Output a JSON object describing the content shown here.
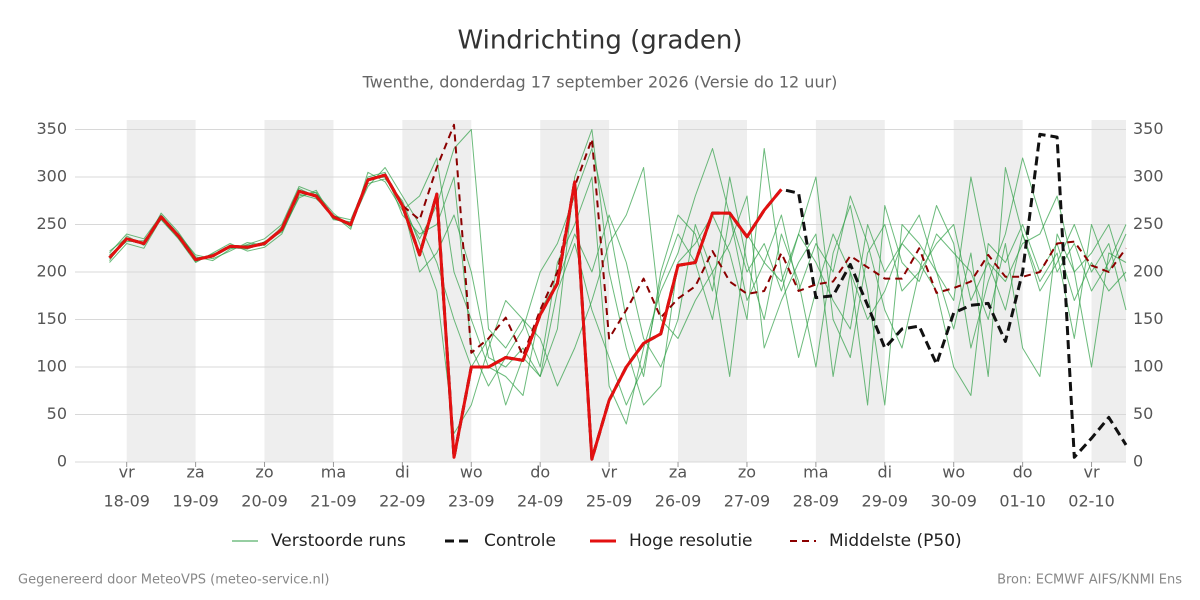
{
  "chart_data": {
    "type": "line",
    "title": "Windrichting (graden)",
    "subtitle": "Twenthe, donderdag 17 september 2026 (Versie do 12 uur)",
    "footer_left": "Gegenereerd door MeteoVPS (meteo-service.nl)",
    "footer_right": "Bron: ECMWF AIFS/KNMI Ens",
    "xlim": [
      -0.75,
      14.5
    ],
    "xticks": [
      {
        "value": 0,
        "label": [
          "vr",
          "18-09"
        ]
      },
      {
        "value": 1,
        "label": [
          "za",
          "19-09"
        ]
      },
      {
        "value": 2,
        "label": [
          "zo",
          "20-09"
        ]
      },
      {
        "value": 3,
        "label": [
          "ma",
          "21-09"
        ]
      },
      {
        "value": 4,
        "label": [
          "di",
          "22-09"
        ]
      },
      {
        "value": 5,
        "label": [
          "wo",
          "23-09"
        ]
      },
      {
        "value": 6,
        "label": [
          "do",
          "24-09"
        ]
      },
      {
        "value": 7,
        "label": [
          "vr",
          "25-09"
        ]
      },
      {
        "value": 8,
        "label": [
          "za",
          "26-09"
        ]
      },
      {
        "value": 9,
        "label": [
          "zo",
          "27-09"
        ]
      },
      {
        "value": 10,
        "label": [
          "ma",
          "28-09"
        ]
      },
      {
        "value": 11,
        "label": [
          "di",
          "29-09"
        ]
      },
      {
        "value": 12,
        "label": [
          "wo",
          "30-09"
        ]
      },
      {
        "value": 13,
        "label": [
          "do",
          "01-10"
        ]
      },
      {
        "value": 14,
        "label": [
          "vr",
          "02-10"
        ]
      }
    ],
    "ylim": [
      0,
      360
    ],
    "yticks": [
      0,
      50,
      100,
      150,
      200,
      250,
      300,
      350
    ],
    "y2lim": [
      0,
      360
    ],
    "y2ticks": [
      0,
      50,
      100,
      150,
      200,
      250,
      300,
      350
    ],
    "grid": true,
    "x": [
      -0.25,
      0,
      0.25,
      0.5,
      0.75,
      1,
      1.25,
      1.5,
      1.75,
      2,
      2.25,
      2.5,
      2.75,
      3,
      3.25,
      3.5,
      3.75,
      4,
      4.25,
      4.5,
      4.75,
      5,
      5.25,
      5.5,
      5.75,
      6,
      6.25,
      6.5,
      6.75,
      7,
      7.25,
      7.5,
      7.75,
      8,
      8.25,
      8.5,
      8.75,
      9,
      9.25,
      9.5,
      9.75,
      10,
      10.25,
      10.5,
      10.75,
      11,
      11.25,
      11.5,
      11.75,
      12,
      12.25,
      12.5,
      12.75,
      13,
      13.25,
      13.5,
      13.75,
      14,
      14.25,
      14.5
    ],
    "ensemble": {
      "name": "Verstoorde runs",
      "color": "#2e9e44",
      "members": [
        [
          212,
          238,
          228,
          262,
          242,
          216,
          212,
          224,
          229,
          235,
          250,
          290,
          283,
          262,
          247,
          300,
          305,
          260,
          240,
          250,
          300,
          120,
          80,
          110,
          140,
          200,
          230,
          280,
          330,
          250,
          150,
          90,
          200,
          260,
          240,
          180,
          300,
          210,
          150,
          240,
          190,
          100,
          220,
          270,
          180,
          60,
          250,
          230,
          200,
          140,
          220,
          90,
          310,
          240,
          180,
          210,
          250,
          200,
          230,
          160
        ],
        [
          218,
          232,
          233,
          255,
          235,
          210,
          220,
          230,
          222,
          226,
          240,
          280,
          284,
          255,
          253,
          293,
          298,
          275,
          230,
          180,
          30,
          60,
          120,
          170,
          150,
          100,
          210,
          250,
          300,
          80,
          40,
          120,
          180,
          220,
          280,
          330,
          260,
          170,
          210,
          190,
          240,
          300,
          150,
          110,
          220,
          250,
          180,
          200,
          270,
          230,
          120,
          190,
          240,
          320,
          260,
          200,
          230,
          180,
          210,
          250
        ],
        [
          220,
          240,
          235,
          260,
          240,
          218,
          214,
          222,
          231,
          228,
          248,
          282,
          277,
          260,
          245,
          305,
          295,
          265,
          280,
          320,
          200,
          150,
          100,
          90,
          70,
          160,
          190,
          240,
          200,
          260,
          210,
          130,
          100,
          150,
          250,
          200,
          230,
          280,
          120,
          170,
          210,
          240,
          90,
          200,
          150,
          180,
          230,
          260,
          200,
          170,
          300,
          210,
          160,
          240,
          190,
          220,
          130,
          250,
          200,
          240
        ],
        [
          210,
          230,
          225,
          256,
          236,
          212,
          218,
          226,
          224,
          232,
          242,
          278,
          286,
          256,
          250,
          290,
          310,
          280,
          250,
          210,
          150,
          100,
          130,
          60,
          110,
          90,
          140,
          300,
          350,
          200,
          120,
          60,
          80,
          210,
          230,
          260,
          220,
          150,
          330,
          200,
          110,
          180,
          240,
          200,
          60,
          270,
          210,
          190,
          240,
          220,
          200,
          150,
          230,
          120,
          90,
          240,
          200,
          220,
          250,
          190
        ],
        [
          222,
          236,
          231,
          259,
          239,
          214,
          216,
          228,
          227,
          229,
          246,
          288,
          279,
          259,
          255,
          298,
          300,
          268,
          235,
          270,
          330,
          350,
          140,
          120,
          150,
          130,
          80,
          120,
          170,
          230,
          260,
          310,
          150,
          130,
          170,
          200,
          90,
          240,
          210,
          260,
          180,
          230,
          200,
          280,
          230,
          160,
          120,
          200,
          230,
          250,
          170,
          210,
          190,
          230,
          240,
          280,
          200,
          100,
          220,
          210
        ],
        [
          214,
          234,
          229,
          257,
          237,
          211,
          219,
          225,
          228,
          231,
          244,
          284,
          281,
          257,
          249,
          296,
          303,
          272,
          200,
          220,
          260,
          200,
          110,
          100,
          120,
          90,
          180,
          230,
          160,
          110,
          60,
          100,
          190,
          240,
          210,
          150,
          260,
          200,
          230,
          180,
          240,
          210,
          170,
          140,
          250,
          200,
          230,
          210,
          180,
          100,
          70,
          230,
          210,
          250,
          200,
          230,
          170,
          210,
          180,
          200
        ]
      ]
    },
    "series": [
      {
        "name": "Controle",
        "color": "#111111",
        "style": "dashed-thick",
        "values": [
          215,
          235,
          230,
          258,
          238,
          213,
          217,
          227,
          226,
          230,
          245,
          285,
          280,
          258,
          250,
          297,
          302,
          270,
          218,
          282,
          5,
          100,
          100,
          110,
          107,
          155,
          188,
          295,
          3,
          65,
          100,
          125,
          135,
          207,
          210,
          262,
          262,
          237,
          265,
          287,
          283,
          173,
          175,
          208,
          165,
          120,
          140,
          143,
          103,
          157,
          165,
          167,
          127,
          200,
          345,
          342,
          5,
          25,
          47,
          18
        ]
      },
      {
        "name": "Hoge resolutie",
        "color": "#e31010",
        "style": "solid",
        "values": [
          215,
          235,
          230,
          258,
          238,
          213,
          217,
          227,
          226,
          230,
          245,
          285,
          280,
          258,
          250,
          297,
          302,
          270,
          218,
          282,
          5,
          100,
          100,
          110,
          107,
          155,
          188,
          295,
          3,
          65,
          100,
          125,
          135,
          207,
          210,
          262,
          262,
          237,
          265,
          287,
          null,
          null,
          null,
          null,
          null,
          null,
          null,
          null,
          null,
          null,
          null,
          null,
          null,
          null,
          null,
          null,
          null,
          null,
          null,
          null
        ]
      },
      {
        "name": "Middelste (P50)",
        "color": "#8b0000",
        "style": "dashed",
        "values": [
          215,
          235,
          230,
          258,
          238,
          213,
          217,
          227,
          226,
          230,
          245,
          285,
          280,
          258,
          250,
          297,
          302,
          270,
          255,
          310,
          355,
          115,
          130,
          152,
          112,
          160,
          200,
          290,
          340,
          130,
          160,
          193,
          152,
          172,
          185,
          222,
          190,
          177,
          180,
          220,
          180,
          187,
          190,
          217,
          205,
          193,
          193,
          225,
          178,
          183,
          190,
          218,
          195,
          195,
          200,
          230,
          232,
          207,
          200,
          225
        ]
      }
    ]
  }
}
